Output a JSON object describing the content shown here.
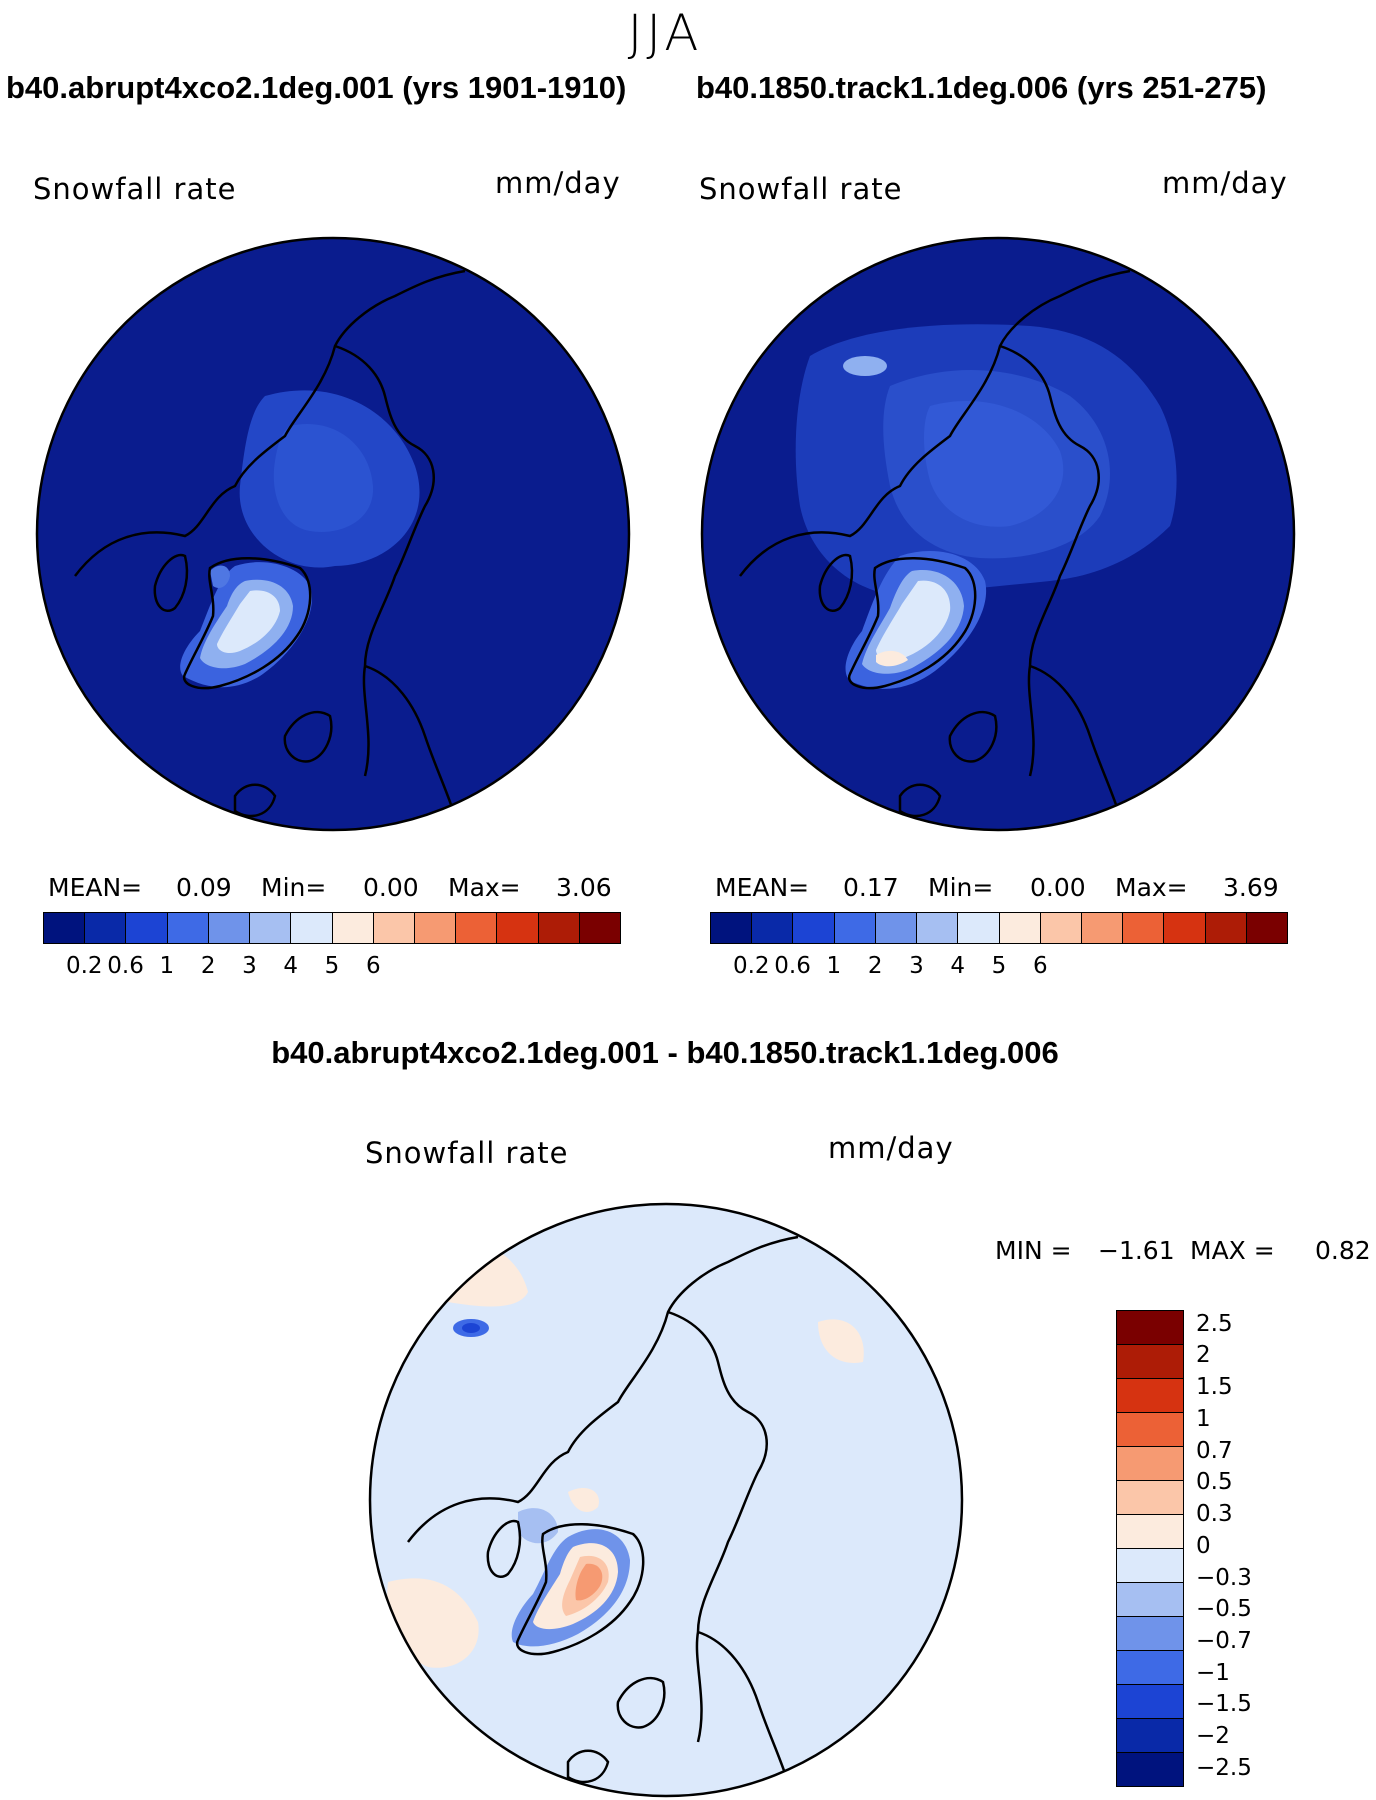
{
  "chart_data": [
    {
      "type": "heatmap",
      "projection": "north polar stereographic",
      "title": "b40.abrupt4xco2.1deg.001 (yrs 1901-1910)",
      "variable": "Snowfall rate",
      "units": "mm/day",
      "stats": {
        "mean_label": "MEAN=",
        "mean": "0.09",
        "min_label": "Min=",
        "min": "0.00",
        "max_label": "Max=",
        "max": "3.06"
      },
      "colorbar_ticks": [
        "0.2",
        "0.6",
        "1",
        "2",
        "3",
        "4",
        "5",
        "6"
      ],
      "colorbar_colors": [
        "#00137e",
        "#0929a8",
        "#1c44d4",
        "#3e6ae6",
        "#6f93ea",
        "#a6bff2",
        "#dce9fb",
        "#fcebde",
        "#fbc6a9",
        "#f69a72",
        "#ec6136",
        "#d63311",
        "#ad1c06",
        "#7a0000"
      ]
    },
    {
      "type": "heatmap",
      "projection": "north polar stereographic",
      "title": "b40.1850.track1.1deg.006 (yrs 251-275)",
      "variable": "Snowfall rate",
      "units": "mm/day",
      "stats": {
        "mean_label": "MEAN=",
        "mean": "0.17",
        "min_label": "Min=",
        "min": "0.00",
        "max_label": "Max=",
        "max": "3.69"
      },
      "colorbar_ticks": [
        "0.2",
        "0.6",
        "1",
        "2",
        "3",
        "4",
        "5",
        "6"
      ],
      "colorbar_colors": [
        "#00137e",
        "#0929a8",
        "#1c44d4",
        "#3e6ae6",
        "#6f93ea",
        "#a6bff2",
        "#dce9fb",
        "#fcebde",
        "#fbc6a9",
        "#f69a72",
        "#ec6136",
        "#d63311",
        "#ad1c06",
        "#7a0000"
      ]
    },
    {
      "type": "heatmap",
      "projection": "north polar stereographic",
      "title": "b40.abrupt4xco2.1deg.001 - b40.1850.track1.1deg.006",
      "variable": "Snowfall rate",
      "units": "mm/day",
      "minmax": {
        "min_label": "MIN =",
        "min": "−1.61",
        "max_label": "MAX =",
        "max": "0.82"
      },
      "colorbar_ticks": [
        "2.5",
        "2",
        "1.5",
        "1",
        "0.7",
        "0.5",
        "0.3",
        "0",
        "−0.3",
        "−0.5",
        "−0.7",
        "−1",
        "−1.5",
        "−2",
        "−2.5"
      ],
      "colorbar_colors": [
        "#7a0000",
        "#ad1c06",
        "#d63311",
        "#ec6136",
        "#f69a72",
        "#fbc6a9",
        "#fcebde",
        "#dce9fb",
        "#a6bff2",
        "#6f93ea",
        "#3e6ae6",
        "#1c44d4",
        "#0929a8",
        "#00137e"
      ]
    }
  ],
  "season": "JJA"
}
